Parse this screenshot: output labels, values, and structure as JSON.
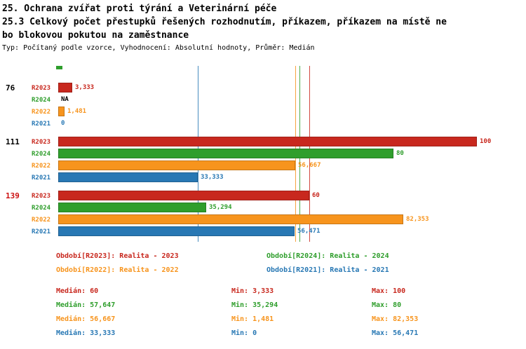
{
  "header": {
    "title_line1": "25. Ochrana zvířat proti týrání a Veterinární péče",
    "title_line2": "25.3 Celkový počet přestupků řešených rozhodnutím, příkazem, příkazem na místě ne",
    "title_line3": "bo blokovou pokutou na zaměstnance",
    "subtitle": "Typ: Počítaný podle vzorce, Vyhodnocení: Absolutní hodnoty, Průměr: Medián"
  },
  "colors": {
    "R2023": "#c8281e",
    "R2024": "#2f9e2c",
    "R2022": "#f7941d",
    "R2021": "#2878b4",
    "group_label_default": "#000000",
    "group_label_highlight": "#cc1111",
    "na_label": "#000000"
  },
  "chart_data": {
    "type": "bar",
    "orientation": "horizontal",
    "xlim": [
      0,
      100
    ],
    "grid": false,
    "categories": [
      "76",
      "111",
      "139"
    ],
    "series_order": [
      "R2023",
      "R2024",
      "R2022",
      "R2021"
    ],
    "groups": [
      {
        "label": "76",
        "highlight": false,
        "bars": [
          {
            "series": "R2023",
            "value": 3.333,
            "value_label": "3,333"
          },
          {
            "series": "R2024",
            "value": null,
            "value_label": "NA"
          },
          {
            "series": "R2022",
            "value": 1.481,
            "value_label": "1,481"
          },
          {
            "series": "R2021",
            "value": 0,
            "value_label": "0"
          }
        ]
      },
      {
        "label": "111",
        "highlight": false,
        "bars": [
          {
            "series": "R2023",
            "value": 100,
            "value_label": "100"
          },
          {
            "series": "R2024",
            "value": 80,
            "value_label": "80"
          },
          {
            "series": "R2022",
            "value": 56.667,
            "value_label": "56,667"
          },
          {
            "series": "R2021",
            "value": 33.333,
            "value_label": "33,333"
          }
        ]
      },
      {
        "label": "139",
        "highlight": true,
        "bars": [
          {
            "series": "R2023",
            "value": 60,
            "value_label": "60"
          },
          {
            "series": "R2024",
            "value": 35.294,
            "value_label": "35,294"
          },
          {
            "series": "R2022",
            "value": 82.353,
            "value_label": "82,353"
          },
          {
            "series": "R2021",
            "value": 56.471,
            "value_label": "56,471"
          }
        ]
      }
    ],
    "median_lines": [
      {
        "series": "R2023",
        "value": 60
      },
      {
        "series": "R2024",
        "value": 57.647
      },
      {
        "series": "R2022",
        "value": 56.667
      },
      {
        "series": "R2021",
        "value": 33.333
      }
    ]
  },
  "legend": [
    {
      "series": "R2023",
      "label": "Období[R2023]: Realita - 2023"
    },
    {
      "series": "R2024",
      "label": "Období[R2024]: Realita - 2024"
    },
    {
      "series": "R2022",
      "label": "Období[R2022]: Realita - 2022"
    },
    {
      "series": "R2021",
      "label": "Období[R2021]: Realita - 2021"
    }
  ],
  "stats": [
    {
      "series": "R2023",
      "median": "Medián: 60",
      "min": "Min: 3,333",
      "max": "Max: 100"
    },
    {
      "series": "R2024",
      "median": "Medián: 57,647",
      "min": "Min: 35,294",
      "max": "Max: 80"
    },
    {
      "series": "R2022",
      "median": "Medián: 56,667",
      "min": "Min: 1,481",
      "max": "Max: 82,353"
    },
    {
      "series": "R2021",
      "median": "Medián: 33,333",
      "min": "Min: 0",
      "max": "Max: 56,471"
    }
  ]
}
